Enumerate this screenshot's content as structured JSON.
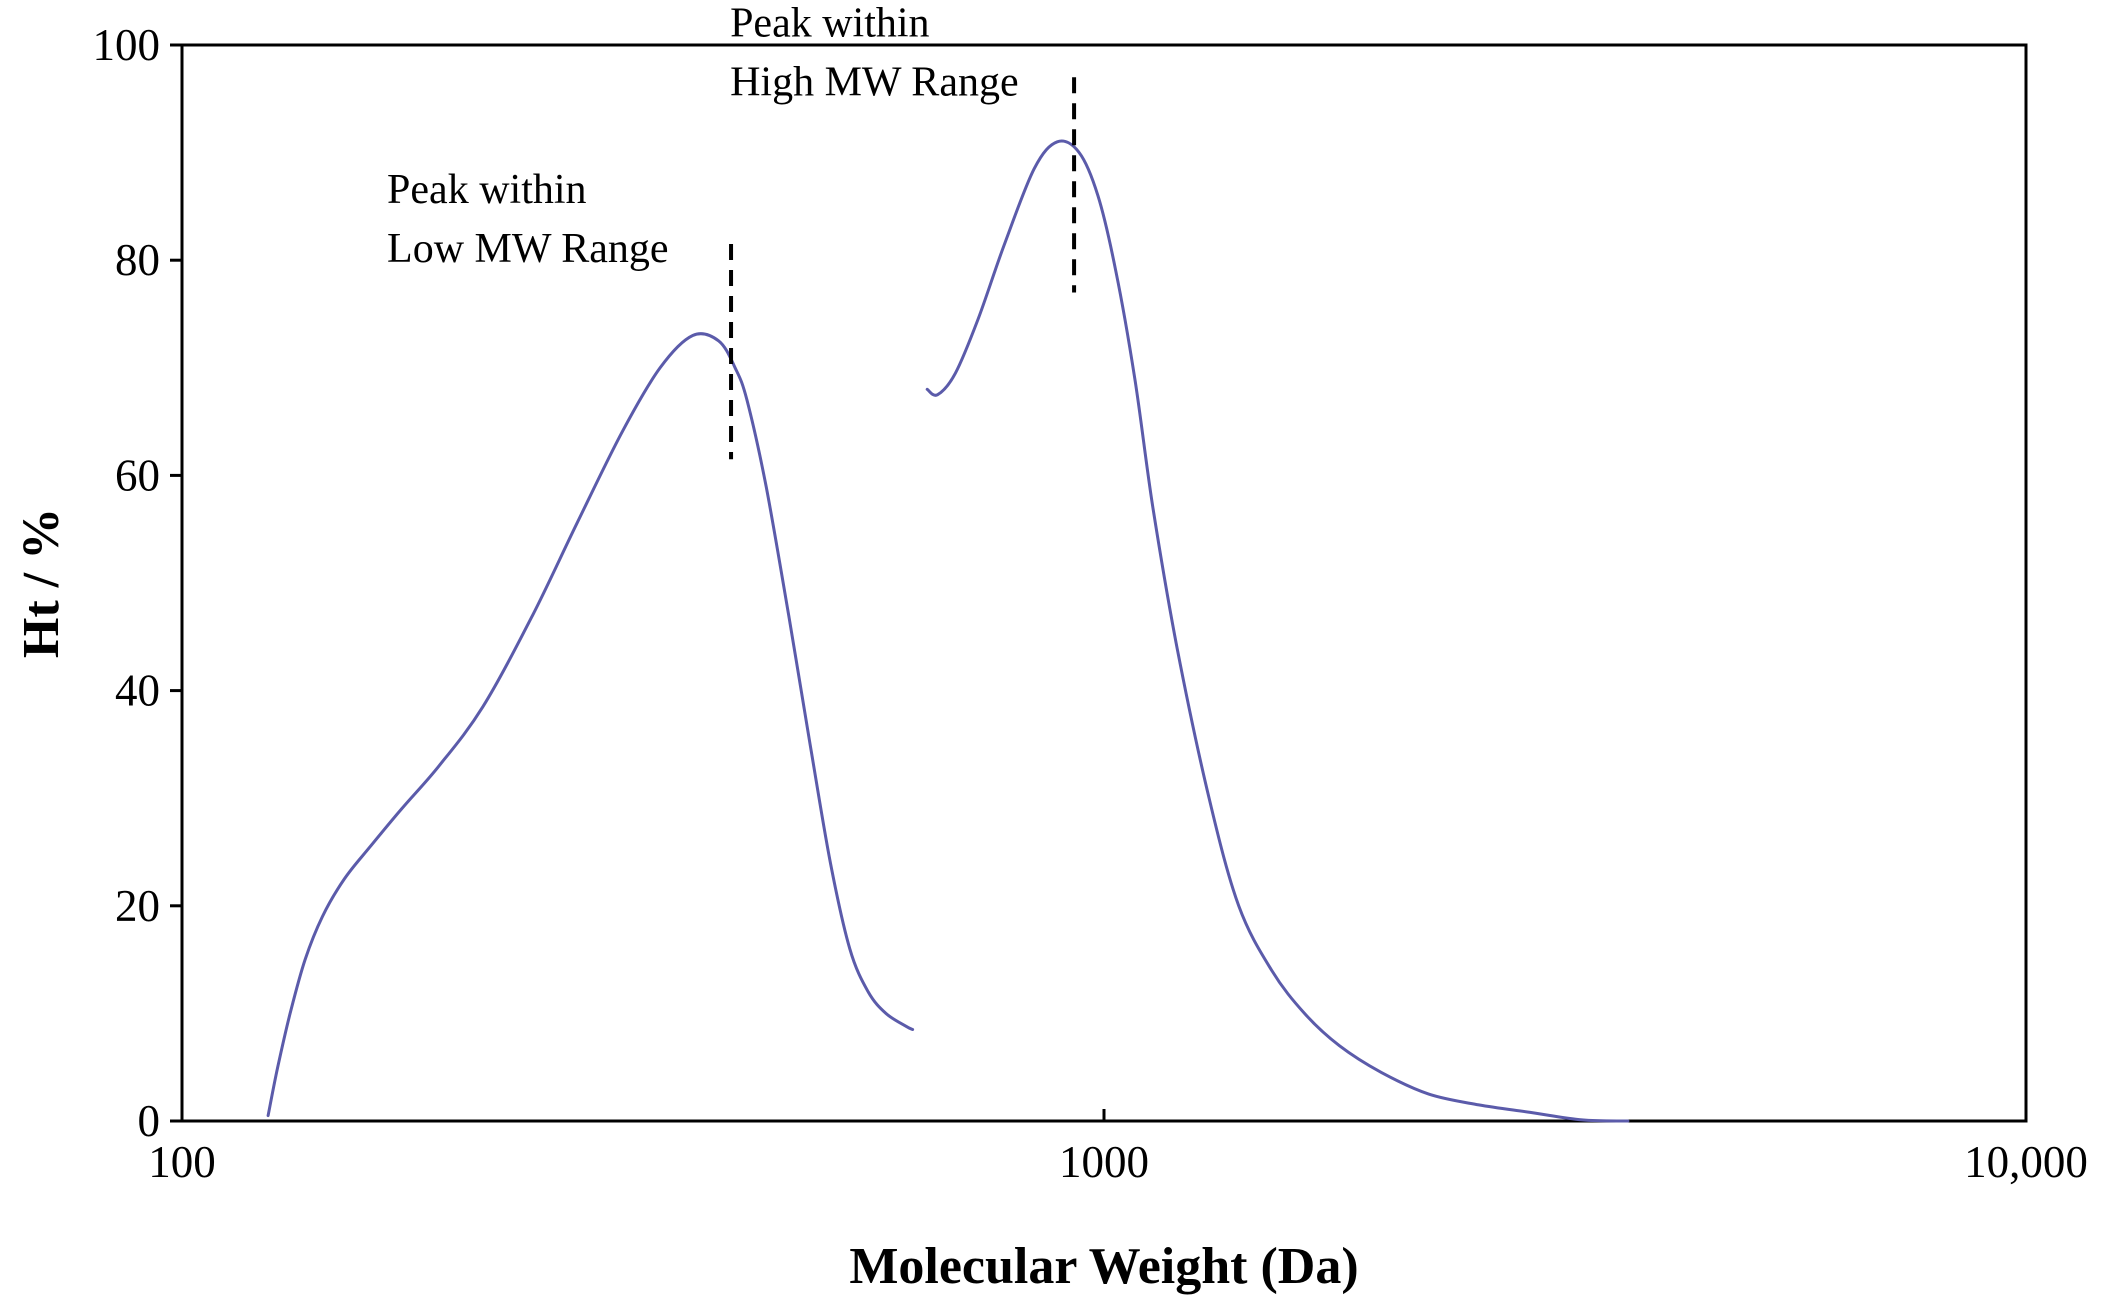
{
  "chart_data": {
    "type": "line",
    "title": "",
    "xlabel": "Molecular Weight (Da)",
    "ylabel": "Ht / %",
    "xscale": "log",
    "xlim": [
      100,
      10000
    ],
    "ylim": [
      0,
      100
    ],
    "x_ticks": [
      {
        "value": 100,
        "label": "100"
      },
      {
        "value": 1000,
        "label": "1000"
      },
      {
        "value": 10000,
        "label": "10,000"
      }
    ],
    "y_ticks": [
      {
        "value": 0,
        "label": "0"
      },
      {
        "value": 20,
        "label": "20"
      },
      {
        "value": 40,
        "label": "40"
      },
      {
        "value": 60,
        "label": "60"
      },
      {
        "value": 80,
        "label": "80"
      },
      {
        "value": 100,
        "label": "100"
      }
    ],
    "grid": false,
    "line_color": "#5b5baa",
    "series": [
      {
        "name": "Low MW range",
        "x": [
          124,
          127,
          131,
          136,
          142,
          150,
          160,
          173,
          190,
          212,
          240,
          268,
          300,
          330,
          358,
          382,
          398,
          410,
          430,
          455,
          480,
          505,
          530,
          555,
          580,
          610,
          620
        ],
        "y": [
          0.5,
          5,
          10,
          15,
          19,
          22.5,
          25.5,
          29,
          33,
          38.5,
          47,
          55.5,
          64,
          70,
          73,
          72.5,
          70,
          67,
          59,
          47,
          35,
          24,
          16,
          12,
          10,
          8.8,
          8.5
        ]
      },
      {
        "name": "High MW range",
        "x": [
          643,
          660,
          690,
          730,
          780,
          840,
          890,
          940,
          985,
          1030,
          1080,
          1130,
          1200,
          1300,
          1400,
          1520,
          1650,
          1800,
          2000,
          2250,
          2550,
          2900,
          3300,
          3700
        ],
        "y": [
          68,
          67.5,
          69.5,
          74.5,
          81.5,
          88.5,
          91,
          90,
          86,
          79,
          69,
          57,
          44,
          30,
          20,
          14,
          10,
          7,
          4.5,
          2.5,
          1.5,
          0.8,
          0.1,
          0
        ]
      }
    ],
    "annotations": [
      {
        "lines": [
          "Peak within",
          "Low MW Range"
        ],
        "marker_x": 394,
        "marker_y_range": [
          61.5,
          81.5
        ]
      },
      {
        "lines": [
          "Peak within",
          "High MW Range"
        ],
        "marker_x": 928,
        "marker_y_range": [
          77,
          97
        ]
      }
    ]
  }
}
